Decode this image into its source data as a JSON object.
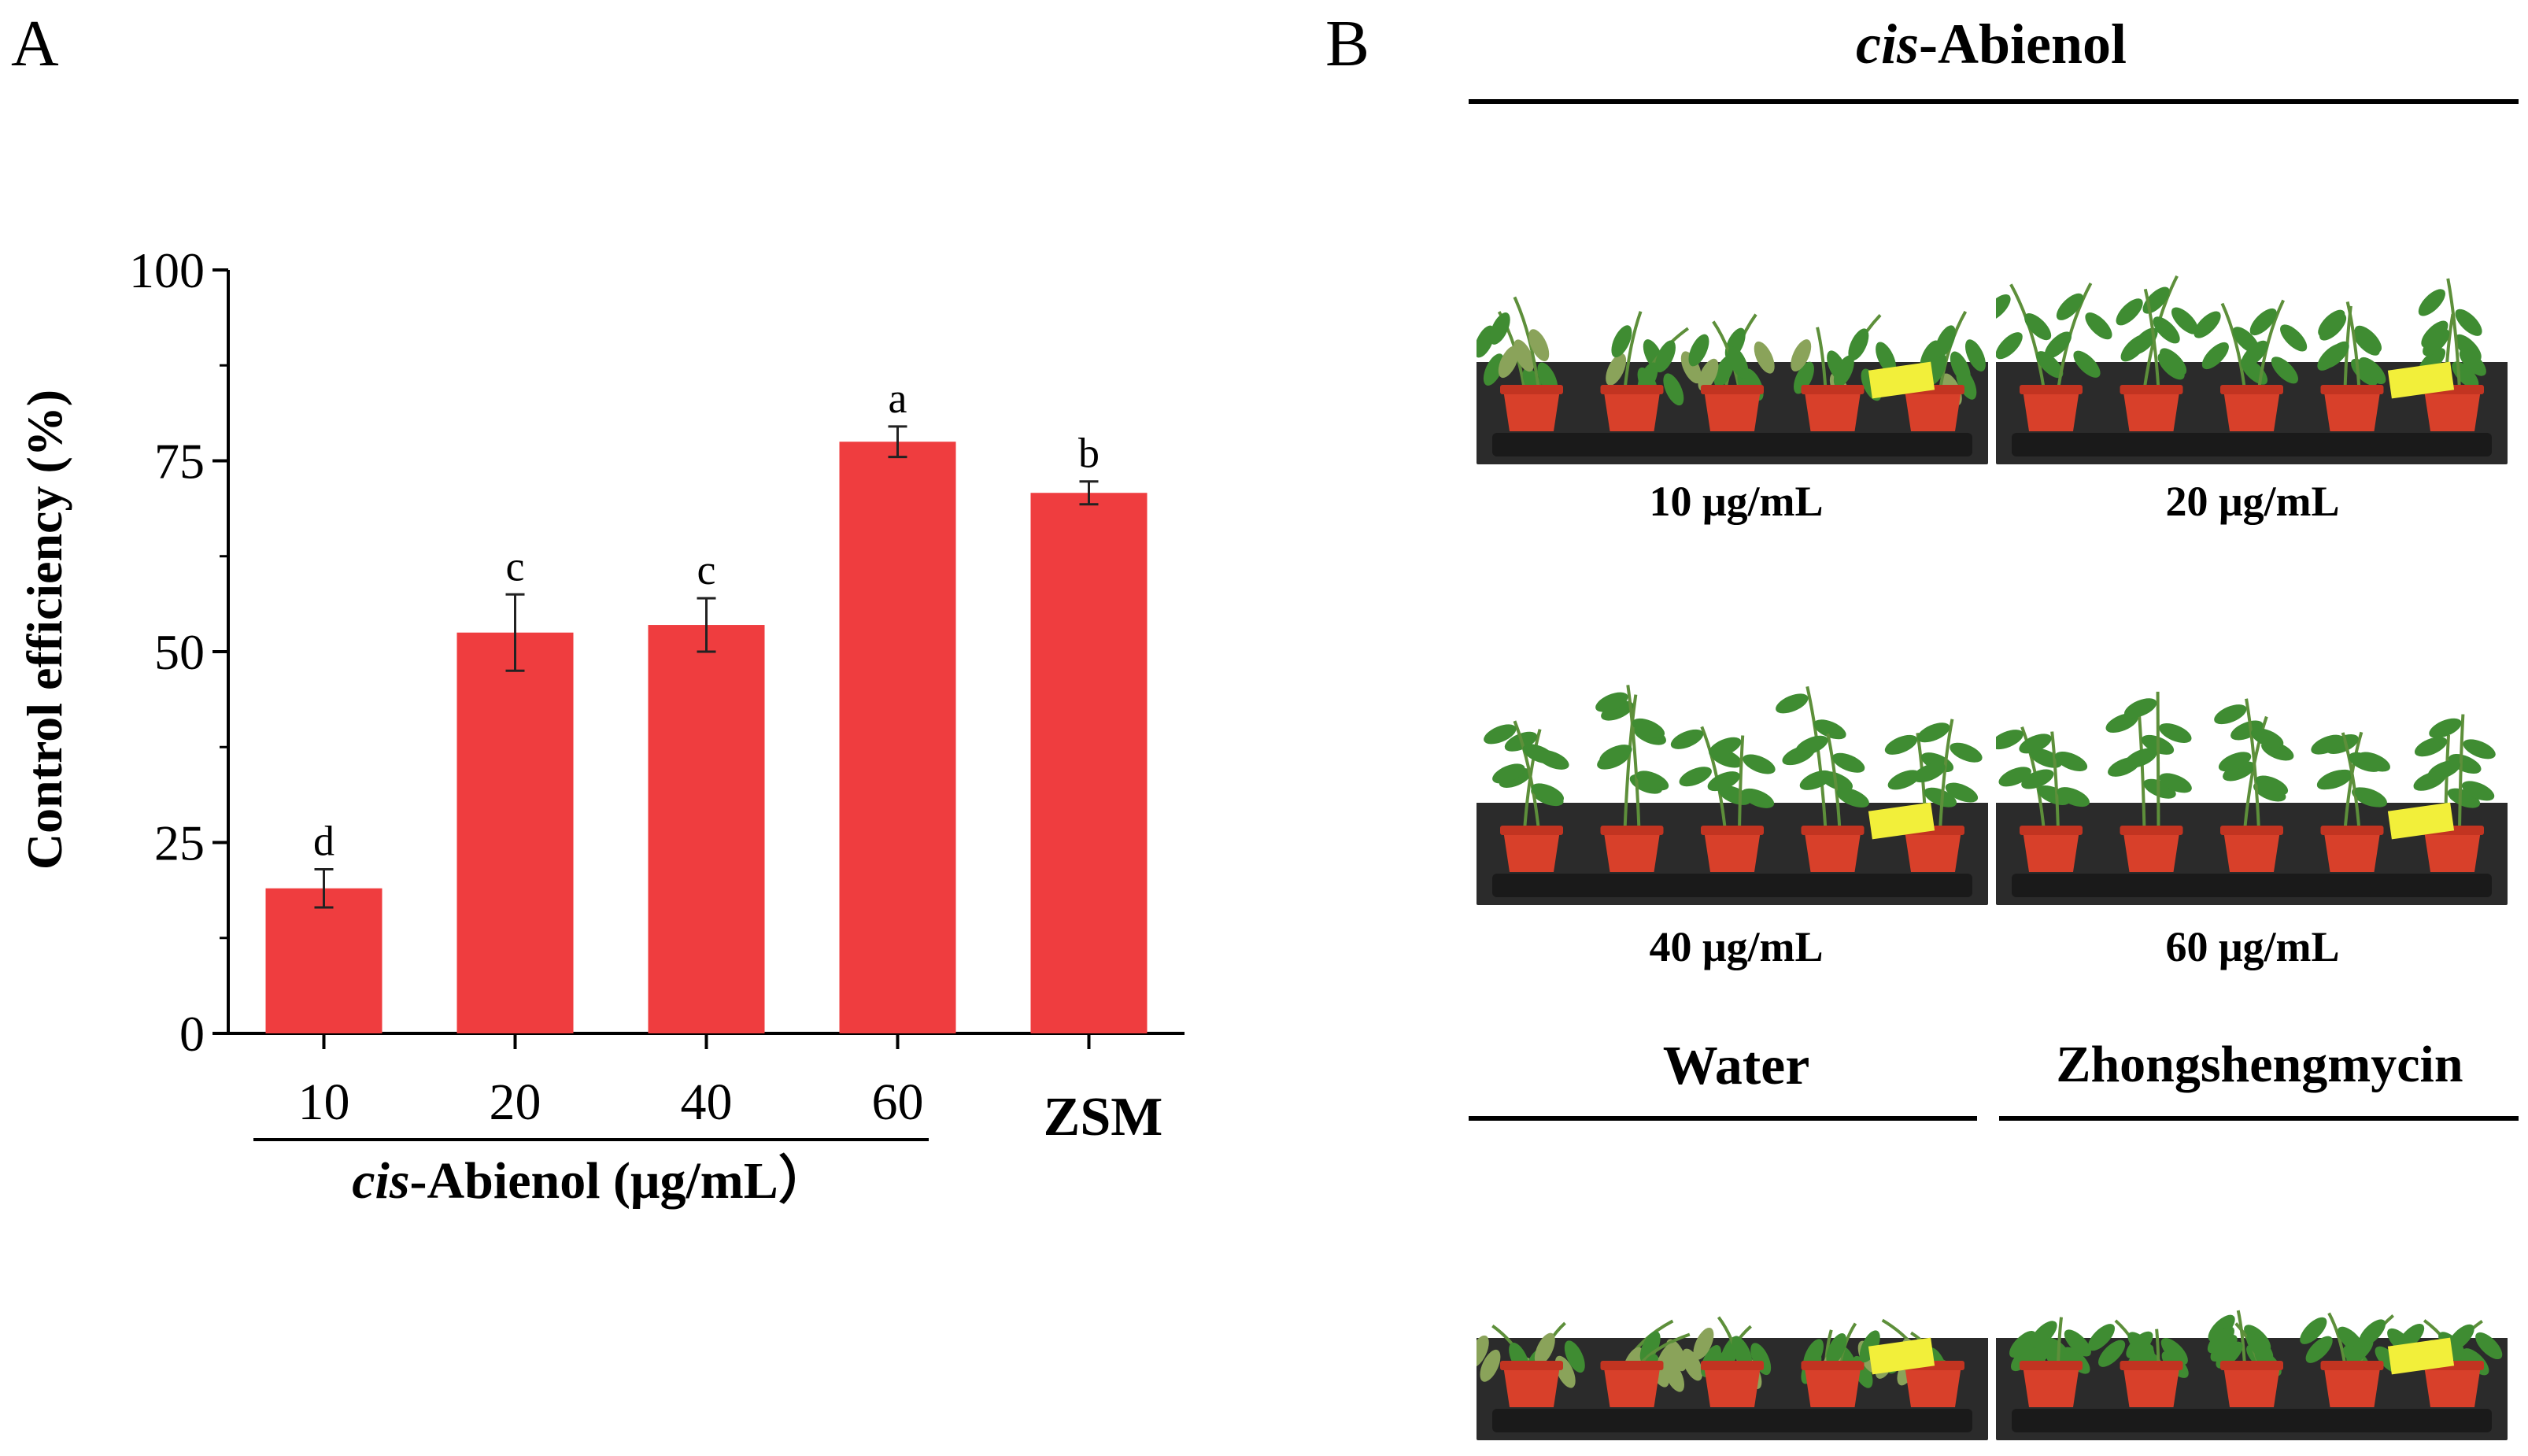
{
  "panel_a": {
    "letter": "A"
  },
  "panel_b": {
    "letter": "B",
    "header": {
      "italic_part": "cis",
      "rest": "-Abienol"
    },
    "photos": [
      {
        "caption": "10 μg/mL",
        "status": "wilted"
      },
      {
        "caption": "20 μg/mL",
        "status": "partially wilted"
      },
      {
        "caption": "40 μg/mL",
        "status": "healthy"
      },
      {
        "caption": "60 μg/mL",
        "status": "healthy"
      },
      {
        "caption": "",
        "status": "wilted"
      },
      {
        "caption": "",
        "status": "partially wilted"
      }
    ],
    "control_labels": {
      "water": "Water",
      "zsm": "Zhongshengmycin"
    }
  },
  "chart_data": {
    "type": "bar",
    "categories": [
      "10",
      "20",
      "40",
      "60",
      "ZSM"
    ],
    "values": [
      19.0,
      52.5,
      53.5,
      77.5,
      70.8
    ],
    "errors": [
      2.5,
      5.0,
      3.5,
      2.0,
      1.5
    ],
    "significance": [
      "d",
      "c",
      "c",
      "a",
      "b"
    ],
    "ylabel": "Control efficiency (%)",
    "xlabel": {
      "italic_part": "cis",
      "rest": "-Abienol (μg/mL）"
    },
    "ylim": [
      0,
      100
    ],
    "yticks": [
      0,
      25,
      50,
      75,
      100
    ],
    "bar_color": "#ef3d3f",
    "grid": false
  }
}
